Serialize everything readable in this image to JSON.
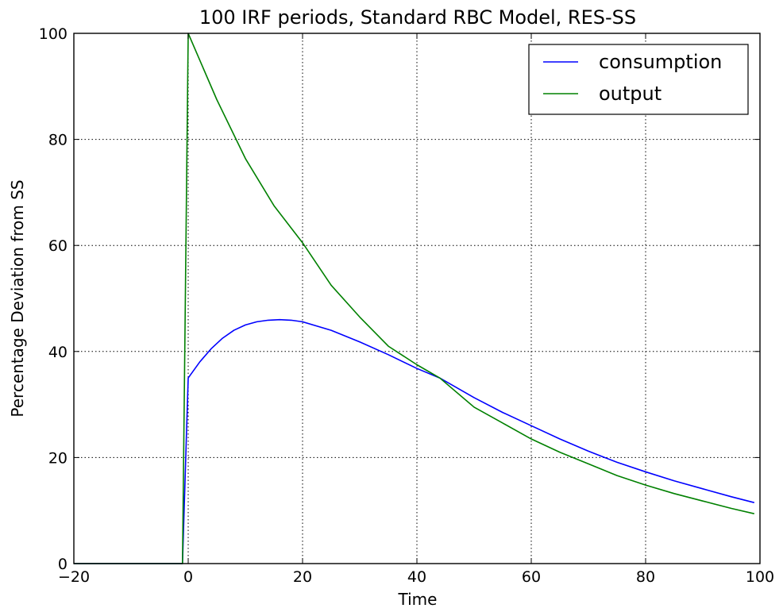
{
  "chart_data": {
    "type": "line",
    "title": "100 IRF periods, Standard RBC Model, RES-SS",
    "xlabel": "Time",
    "ylabel": "Percentage Deviation from SS",
    "xlim": [
      -20,
      100
    ],
    "ylim": [
      0,
      100
    ],
    "xticks": [
      -20,
      0,
      20,
      40,
      60,
      80,
      100
    ],
    "yticks": [
      0,
      20,
      40,
      60,
      80,
      100
    ],
    "xtick_labels": [
      "−20",
      "0",
      "20",
      "40",
      "60",
      "80",
      "100"
    ],
    "ytick_labels": [
      "0",
      "20",
      "40",
      "60",
      "80",
      "100"
    ],
    "grid": true,
    "legend_position": "top-right",
    "series": [
      {
        "name": "consumption",
        "color": "#0000ff",
        "x": [
          -20,
          -1,
          0,
          2,
          4,
          6,
          8,
          10,
          12,
          14,
          16,
          18,
          20,
          25,
          30,
          35,
          40,
          44,
          50,
          55,
          60,
          65,
          70,
          75,
          80,
          85,
          90,
          95,
          99
        ],
        "y": [
          0,
          0,
          35,
          38,
          40.5,
          42.5,
          44,
          45,
          45.6,
          45.9,
          46,
          45.9,
          45.6,
          44,
          41.8,
          39.4,
          36.8,
          35,
          31.3,
          28.5,
          26,
          23.5,
          21.2,
          19.1,
          17.3,
          15.6,
          14.1,
          12.6,
          11.5
        ]
      },
      {
        "name": "output",
        "color": "#008000",
        "x": [
          -20,
          -1,
          0,
          5,
          10,
          15,
          20,
          25,
          30,
          35,
          40,
          44,
          50,
          55,
          60,
          65,
          70,
          75,
          80,
          85,
          90,
          95,
          99
        ],
        "y": [
          0,
          0,
          100,
          87.5,
          76.4,
          67.5,
          60.5,
          52.5,
          46.5,
          41,
          37.5,
          35,
          29.5,
          26.5,
          23.5,
          21,
          18.8,
          16.6,
          14.8,
          13.2,
          11.8,
          10.4,
          9.4
        ]
      }
    ]
  }
}
